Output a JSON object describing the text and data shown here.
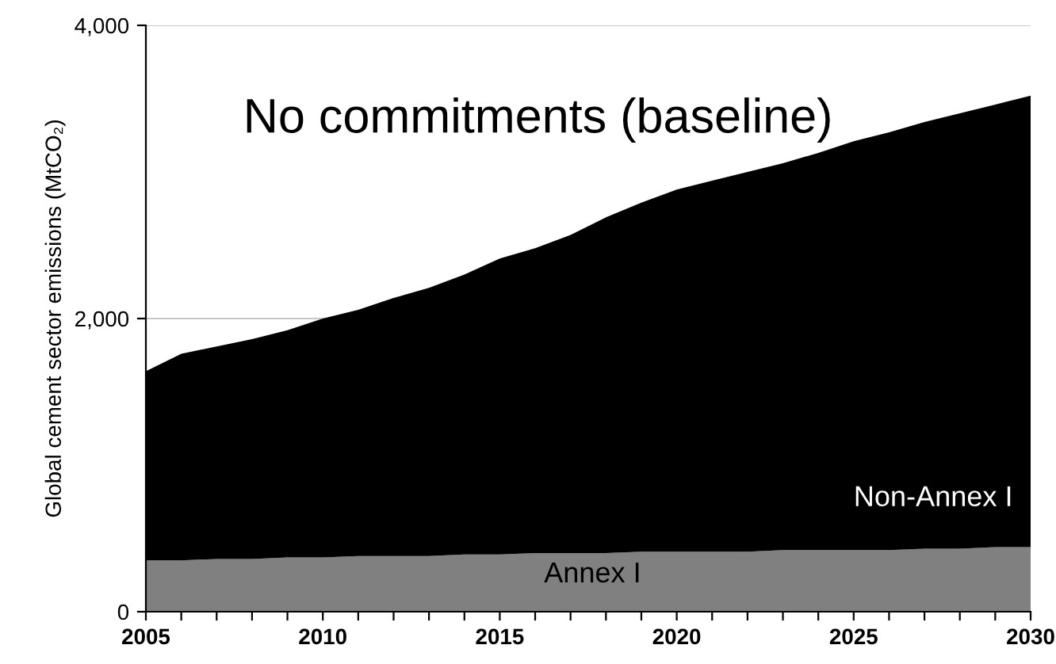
{
  "chart_data": {
    "type": "area",
    "stacked": true,
    "ylabel": "Global cement sector emissions (MtCO₂)",
    "annotations": [
      "No commitments (baseline)"
    ],
    "x": [
      2005,
      2006,
      2007,
      2008,
      2009,
      2010,
      2011,
      2012,
      2013,
      2014,
      2015,
      2016,
      2017,
      2018,
      2019,
      2020,
      2021,
      2022,
      2023,
      2024,
      2025,
      2026,
      2027,
      2028,
      2029,
      2030
    ],
    "series": [
      {
        "name": "Annex I",
        "color": "#808080",
        "values": [
          350,
          350,
          360,
          360,
          370,
          370,
          380,
          380,
          380,
          390,
          390,
          400,
          400,
          400,
          410,
          410,
          410,
          410,
          420,
          420,
          420,
          420,
          430,
          430,
          440,
          440
        ]
      },
      {
        "name": "Non-Annex I",
        "color": "#000000",
        "values": [
          1290,
          1410,
          1450,
          1500,
          1550,
          1630,
          1680,
          1760,
          1830,
          1910,
          2020,
          2080,
          2170,
          2290,
          2380,
          2470,
          2530,
          2590,
          2640,
          2710,
          2790,
          2850,
          2910,
          2970,
          3020,
          3080
        ]
      }
    ],
    "xlim": [
      2005,
      2030
    ],
    "xticks": [
      2005,
      {
        "value": 2006,
        "label": null
      },
      {
        "value": 2007,
        "label": null
      },
      {
        "value": 2008,
        "label": null
      },
      {
        "value": 2009,
        "label": null
      },
      2010,
      {
        "value": 2011,
        "label": null
      },
      {
        "value": 2012,
        "label": null
      },
      {
        "value": 2013,
        "label": null
      },
      {
        "value": 2014,
        "label": null
      },
      2015,
      {
        "value": 2016,
        "label": null
      },
      {
        "value": 2017,
        "label": null
      },
      {
        "value": 2018,
        "label": null
      },
      {
        "value": 2019,
        "label": null
      },
      2020,
      {
        "value": 2021,
        "label": null
      },
      {
        "value": 2022,
        "label": null
      },
      {
        "value": 2023,
        "label": null
      },
      {
        "value": 2024,
        "label": null
      },
      2025,
      {
        "value": 2026,
        "label": null
      },
      {
        "value": 2027,
        "label": null
      },
      {
        "value": 2028,
        "label": null
      },
      {
        "value": 2029,
        "label": null
      },
      2030
    ],
    "ylim": [
      0,
      4000
    ],
    "yticks": [
      {
        "value": 0,
        "label": "0"
      },
      {
        "value": 2000,
        "label": "2,000"
      },
      {
        "value": 4000,
        "label": "4,000"
      }
    ],
    "grid": "y",
    "legend": false
  }
}
